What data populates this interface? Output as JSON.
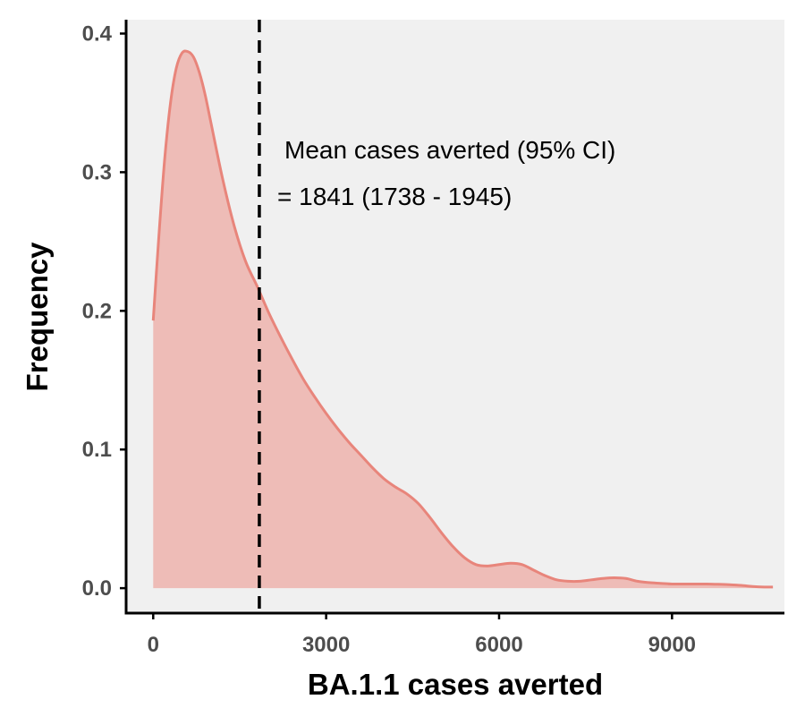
{
  "chart_data": {
    "type": "area",
    "title": "",
    "xlabel": "BA.1.1 cases averted",
    "ylabel": "Frequency",
    "xlim": [
      -470,
      10950
    ],
    "ylim": [
      -0.018,
      0.41
    ],
    "x_ticks": [
      0,
      3000,
      6000,
      9000
    ],
    "x_tick_labels": [
      "0",
      "3000",
      "6000",
      "9000"
    ],
    "y_ticks": [
      0.0,
      0.1,
      0.2,
      0.3,
      0.4
    ],
    "y_tick_labels": [
      "0.0",
      "0.1",
      "0.2",
      "0.3",
      "0.4"
    ],
    "grid": false,
    "legend": "none",
    "series": [
      {
        "x": [
          0,
          100,
          200,
          300,
          400,
          500,
          600,
          700,
          800,
          900,
          1000,
          1200,
          1400,
          1600,
          1800,
          2000,
          2200,
          2400,
          2600,
          2800,
          3000,
          3200,
          3400,
          3600,
          3800,
          4000,
          4200,
          4400,
          4600,
          4800,
          5000,
          5200,
          5400,
          5600,
          5800,
          6000,
          6200,
          6400,
          6600,
          6800,
          7000,
          7200,
          7400,
          7600,
          7800,
          8000,
          8200,
          8400,
          8600,
          8800,
          9000,
          9200,
          9400,
          9600,
          9800,
          10000,
          10200,
          10400,
          10600,
          10750
        ],
        "y": [
          0.193,
          0.255,
          0.31,
          0.35,
          0.375,
          0.386,
          0.387,
          0.383,
          0.372,
          0.356,
          0.336,
          0.296,
          0.262,
          0.236,
          0.218,
          0.199,
          0.182,
          0.166,
          0.151,
          0.138,
          0.126,
          0.115,
          0.105,
          0.096,
          0.087,
          0.079,
          0.073,
          0.068,
          0.061,
          0.051,
          0.04,
          0.03,
          0.022,
          0.017,
          0.016,
          0.017,
          0.018,
          0.017,
          0.013,
          0.009,
          0.006,
          0.005,
          0.005,
          0.006,
          0.007,
          0.0075,
          0.007,
          0.005,
          0.004,
          0.0035,
          0.003,
          0.003,
          0.003,
          0.003,
          0.0028,
          0.0025,
          0.002,
          0.0012,
          0.0008,
          0.0008
        ]
      }
    ],
    "vline": {
      "x": 1841,
      "style": "dashed"
    },
    "annotations": [
      "Mean cases averted (95% CI)",
      "= 1841 (1738 - 1945)"
    ]
  },
  "colors": {
    "panel_background": "#f0f0f0",
    "curve_line": "#e8857b",
    "area_fill": "#eebcb7",
    "axis_line": "#000000",
    "tick_label": "#4d4d4d",
    "vline": "#000000"
  }
}
